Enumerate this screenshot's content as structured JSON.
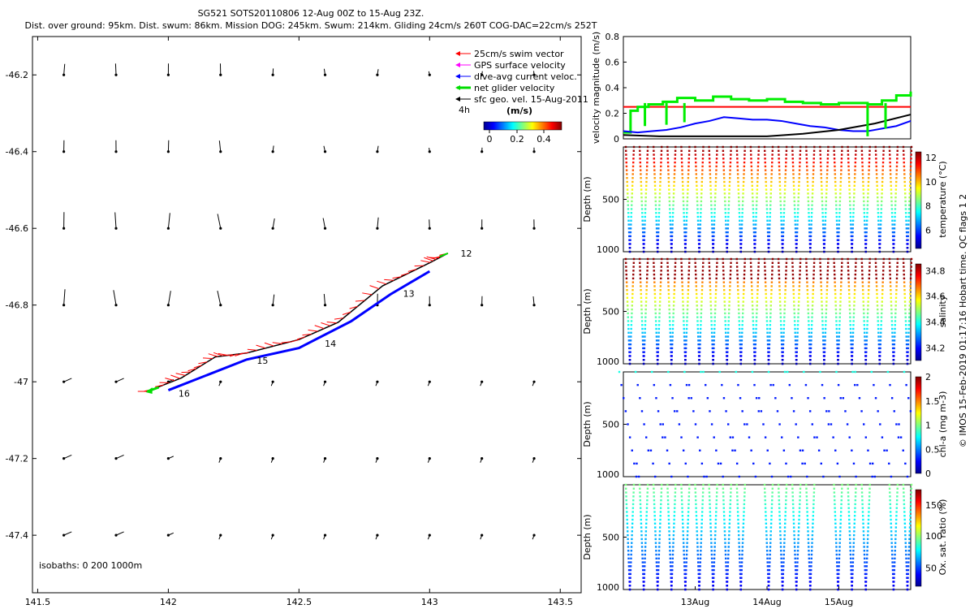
{
  "header": {
    "line1": "SG521 SOTS20110806 12-Aug 00Z to 15-Aug 23Z.",
    "line2": "Dist. over ground: 95km. Dist. swum: 86km. Mission DOG: 245km. Swum: 214km. Gliding 24cm/s 260T COG-DAC=22cm/s 252T"
  },
  "legend": {
    "entries": [
      {
        "label": "25cm/s swim vector",
        "color": "#ff0000"
      },
      {
        "label": "GPS surface velocity",
        "color": "#ff00ff"
      },
      {
        "label": "dive-avg current veloc.",
        "color": "#0000ff"
      },
      {
        "label": "net glider velocity",
        "color": "#00dd00"
      },
      {
        "label": "sfc geo. vel. 15-Aug-2011",
        "color": "#000000"
      }
    ],
    "interval": "4h",
    "cbar_title": "(m/s)",
    "cbar_ticks": [
      "0",
      "0.2",
      "0.4"
    ]
  },
  "map": {
    "x_ticks": [
      "141.5",
      "142",
      "142.5",
      "143",
      "143.5"
    ],
    "y_ticks": [
      "-46.2",
      "-46.4",
      "-46.6",
      "-46.8",
      "-47",
      "-47.2",
      "-47.4"
    ],
    "isobaths": "isobaths: 0    200   1000m",
    "day_labels": [
      "12",
      "13",
      "14",
      "15",
      "16"
    ]
  },
  "copyright": "© IMOS 15-Feb-2019 01:17:16 Hobart time. QC flags 1  2",
  "colors": {
    "red": "#ff0000",
    "green": "#00ee00",
    "blue": "#0000ff",
    "black": "#000000"
  },
  "chart_data": [
    {
      "type": "scatter",
      "title": "SG521 SOTS20110806 12-Aug 00Z to 15-Aug 23Z.",
      "xlabel": "",
      "ylabel": "",
      "xlim": [
        141.48,
        143.58
      ],
      "ylim": [
        -47.55,
        -46.1
      ],
      "grid": false,
      "legend_position": "top-right",
      "series": [
        {
          "name": "net glider velocity",
          "x": [
            141.92,
            142.05,
            142.18,
            142.3,
            142.5,
            142.65,
            142.82,
            143.0,
            143.07
          ],
          "y": [
            -47.025,
            -46.99,
            -46.935,
            -46.925,
            -46.89,
            -46.845,
            -46.75,
            -46.69,
            -46.665
          ]
        },
        {
          "name": "dive-avg current veloc.",
          "x": [
            142.0,
            142.15,
            142.3,
            142.5,
            142.7,
            142.85,
            143.0
          ],
          "y": [
            -47.01,
            -46.97,
            -46.93,
            -46.9,
            -46.83,
            -46.76,
            -46.7
          ]
        }
      ]
    },
    {
      "type": "line",
      "ylabel": "velocity magnitude (m/s)",
      "xlim": [
        12.0,
        16.0
      ],
      "ylim": [
        0,
        0.8
      ],
      "y_ticks": [
        "0",
        "0.2",
        "0.4",
        "0.6",
        "0.8"
      ],
      "series": [
        {
          "name": "",
          "color": "#ff0000",
          "x": [
            12.0,
            16.0
          ],
          "values": [
            0.25,
            0.25
          ]
        },
        {
          "name": "",
          "color": "#00ee00",
          "x": [
            12.0,
            12.1,
            12.2,
            12.35,
            12.55,
            12.75,
            13.0,
            13.25,
            13.5,
            13.75,
            14.0,
            14.25,
            14.5,
            14.75,
            15.0,
            15.2,
            15.4,
            15.6,
            15.8,
            16.0
          ],
          "values": [
            0.05,
            0.22,
            0.25,
            0.27,
            0.29,
            0.32,
            0.3,
            0.33,
            0.31,
            0.3,
            0.31,
            0.29,
            0.28,
            0.27,
            0.28,
            0.28,
            0.27,
            0.3,
            0.34,
            0.37
          ]
        },
        {
          "name": "",
          "color": "#0000ff",
          "x": [
            12.0,
            12.2,
            12.4,
            12.6,
            12.8,
            13.0,
            13.2,
            13.4,
            13.6,
            13.8,
            14.0,
            14.2,
            14.4,
            14.6,
            14.8,
            15.0,
            15.2,
            15.4,
            15.6,
            15.8,
            16.0
          ],
          "values": [
            0.06,
            0.05,
            0.06,
            0.07,
            0.09,
            0.12,
            0.14,
            0.17,
            0.16,
            0.15,
            0.15,
            0.14,
            0.12,
            0.1,
            0.09,
            0.07,
            0.06,
            0.06,
            0.08,
            0.1,
            0.14
          ]
        },
        {
          "name": "",
          "color": "#000000",
          "x": [
            12.0,
            12.5,
            13.0,
            13.5,
            14.0,
            14.5,
            15.0,
            15.5,
            16.0
          ],
          "values": [
            0.03,
            0.02,
            0.02,
            0.02,
            0.02,
            0.04,
            0.07,
            0.12,
            0.19
          ]
        }
      ]
    },
    {
      "type": "scatter",
      "ylabel": "Depth (m)",
      "clabel": "temperature (°C)",
      "y_ticks": [
        "500",
        "1000"
      ],
      "cticks": [
        "6",
        "8",
        "10",
        "12"
      ],
      "clim": [
        4.5,
        12.5
      ]
    },
    {
      "type": "scatter",
      "ylabel": "Depth (m)",
      "clabel": "salinity",
      "y_ticks": [
        "500",
        "1000"
      ],
      "cticks": [
        "34.2",
        "34.4",
        "34.6",
        "34.8"
      ],
      "clim": [
        34.1,
        34.85
      ]
    },
    {
      "type": "scatter",
      "ylabel": "Depth (m)",
      "clabel": "chl-a (mg m-3)",
      "y_ticks": [
        "500",
        "1000"
      ],
      "cticks": [
        "0",
        "0.5",
        "1",
        "1.5",
        "2"
      ],
      "clim": [
        0,
        2
      ]
    },
    {
      "type": "scatter",
      "ylabel": "Depth (m)",
      "clabel": "Ox. sat. ratio (%)",
      "y_ticks": [
        "500",
        "1000"
      ],
      "cticks": [
        "50",
        "100",
        "150"
      ],
      "clim": [
        20,
        175
      ],
      "x_ticks": [
        "13Aug",
        "14Aug",
        "15Aug"
      ]
    }
  ]
}
